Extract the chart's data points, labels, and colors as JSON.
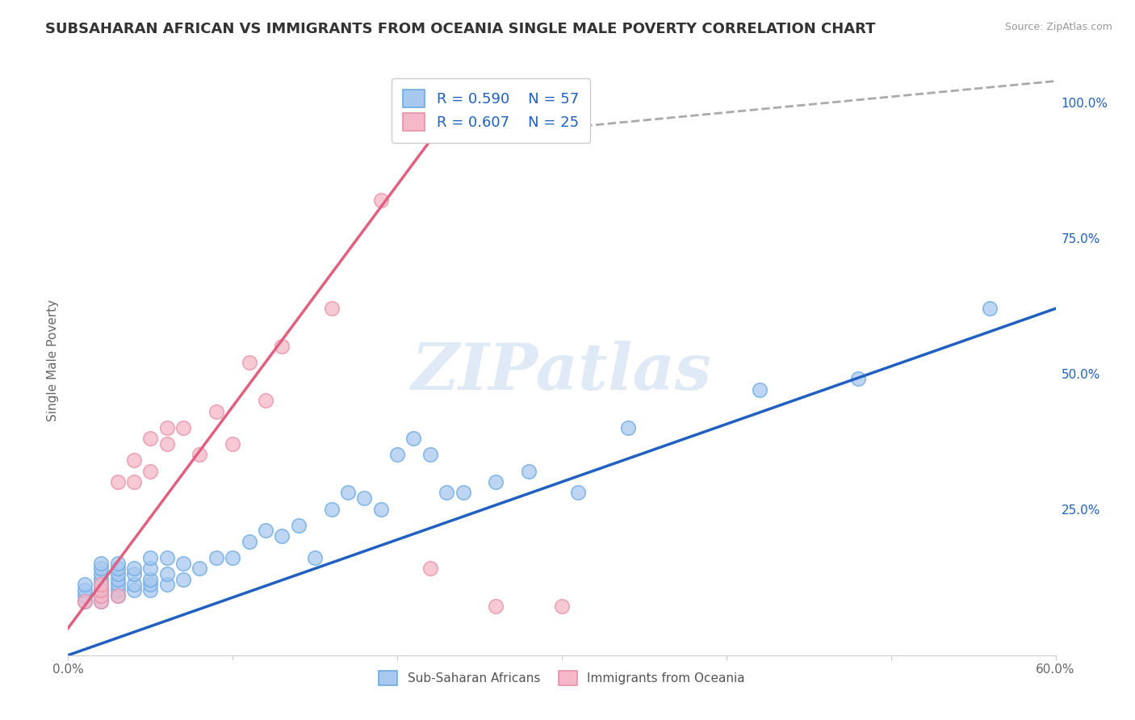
{
  "title": "SUBSAHARAN AFRICAN VS IMMIGRANTS FROM OCEANIA SINGLE MALE POVERTY CORRELATION CHART",
  "source": "Source: ZipAtlas.com",
  "xlabel": "",
  "ylabel": "Single Male Poverty",
  "xlim": [
    0.0,
    0.6
  ],
  "ylim": [
    -0.02,
    1.07
  ],
  "xticks": [
    0.0,
    0.1,
    0.2,
    0.3,
    0.4,
    0.5,
    0.6
  ],
  "xticklabels": [
    "0.0%",
    "",
    "",
    "",
    "",
    "",
    "60.0%"
  ],
  "yticks_right": [
    0.0,
    0.25,
    0.5,
    0.75,
    1.0
  ],
  "yticklabels_right": [
    "",
    "25.0%",
    "50.0%",
    "75.0%",
    "100.0%"
  ],
  "blue_R": 0.59,
  "blue_N": 57,
  "pink_R": 0.607,
  "pink_N": 25,
  "blue_color": "#a8c8f0",
  "pink_color": "#f5b8c8",
  "blue_edge_color": "#6aaae0",
  "pink_edge_color": "#e890a8",
  "blue_line_color": "#2060c0",
  "pink_line_color": "#e06080",
  "gray_dash_color": "#aaaaaa",
  "watermark_color": "#ccddf0",
  "watermark": "ZIPatlas",
  "blue_scatter_x": [
    0.01,
    0.01,
    0.01,
    0.01,
    0.02,
    0.02,
    0.02,
    0.02,
    0.02,
    0.02,
    0.02,
    0.02,
    0.03,
    0.03,
    0.03,
    0.03,
    0.03,
    0.03,
    0.03,
    0.04,
    0.04,
    0.04,
    0.04,
    0.05,
    0.05,
    0.05,
    0.05,
    0.05,
    0.06,
    0.06,
    0.06,
    0.07,
    0.07,
    0.08,
    0.09,
    0.1,
    0.11,
    0.12,
    0.13,
    0.14,
    0.15,
    0.16,
    0.17,
    0.18,
    0.19,
    0.2,
    0.21,
    0.22,
    0.23,
    0.24,
    0.26,
    0.28,
    0.31,
    0.34,
    0.42,
    0.48,
    0.56
  ],
  "blue_scatter_y": [
    0.08,
    0.09,
    0.1,
    0.11,
    0.08,
    0.09,
    0.1,
    0.11,
    0.12,
    0.13,
    0.14,
    0.15,
    0.09,
    0.1,
    0.11,
    0.12,
    0.13,
    0.14,
    0.15,
    0.1,
    0.11,
    0.13,
    0.14,
    0.1,
    0.11,
    0.12,
    0.14,
    0.16,
    0.11,
    0.13,
    0.16,
    0.12,
    0.15,
    0.14,
    0.16,
    0.16,
    0.19,
    0.21,
    0.2,
    0.22,
    0.16,
    0.25,
    0.28,
    0.27,
    0.25,
    0.35,
    0.38,
    0.35,
    0.28,
    0.28,
    0.3,
    0.32,
    0.28,
    0.4,
    0.47,
    0.49,
    0.62
  ],
  "pink_scatter_x": [
    0.01,
    0.02,
    0.02,
    0.02,
    0.02,
    0.03,
    0.03,
    0.04,
    0.04,
    0.05,
    0.05,
    0.06,
    0.06,
    0.07,
    0.08,
    0.09,
    0.1,
    0.11,
    0.12,
    0.13,
    0.16,
    0.19,
    0.22,
    0.26,
    0.3
  ],
  "pink_scatter_y": [
    0.08,
    0.08,
    0.09,
    0.1,
    0.11,
    0.09,
    0.3,
    0.3,
    0.34,
    0.32,
    0.38,
    0.37,
    0.4,
    0.4,
    0.35,
    0.43,
    0.37,
    0.52,
    0.45,
    0.55,
    0.62,
    0.82,
    0.14,
    0.07,
    0.07
  ],
  "blue_line_x": [
    0.0,
    0.6
  ],
  "blue_line_y": [
    -0.02,
    0.62
  ],
  "pink_line_x": [
    0.0,
    0.22
  ],
  "pink_line_y": [
    0.03,
    0.93
  ],
  "pink_dash_line_x": [
    0.22,
    0.6
  ],
  "pink_dash_line_y": [
    0.93,
    1.04
  ],
  "grid_color": "#cccccc",
  "bg_color": "#ffffff",
  "title_fontsize": 13,
  "label_fontsize": 11,
  "tick_fontsize": 11
}
